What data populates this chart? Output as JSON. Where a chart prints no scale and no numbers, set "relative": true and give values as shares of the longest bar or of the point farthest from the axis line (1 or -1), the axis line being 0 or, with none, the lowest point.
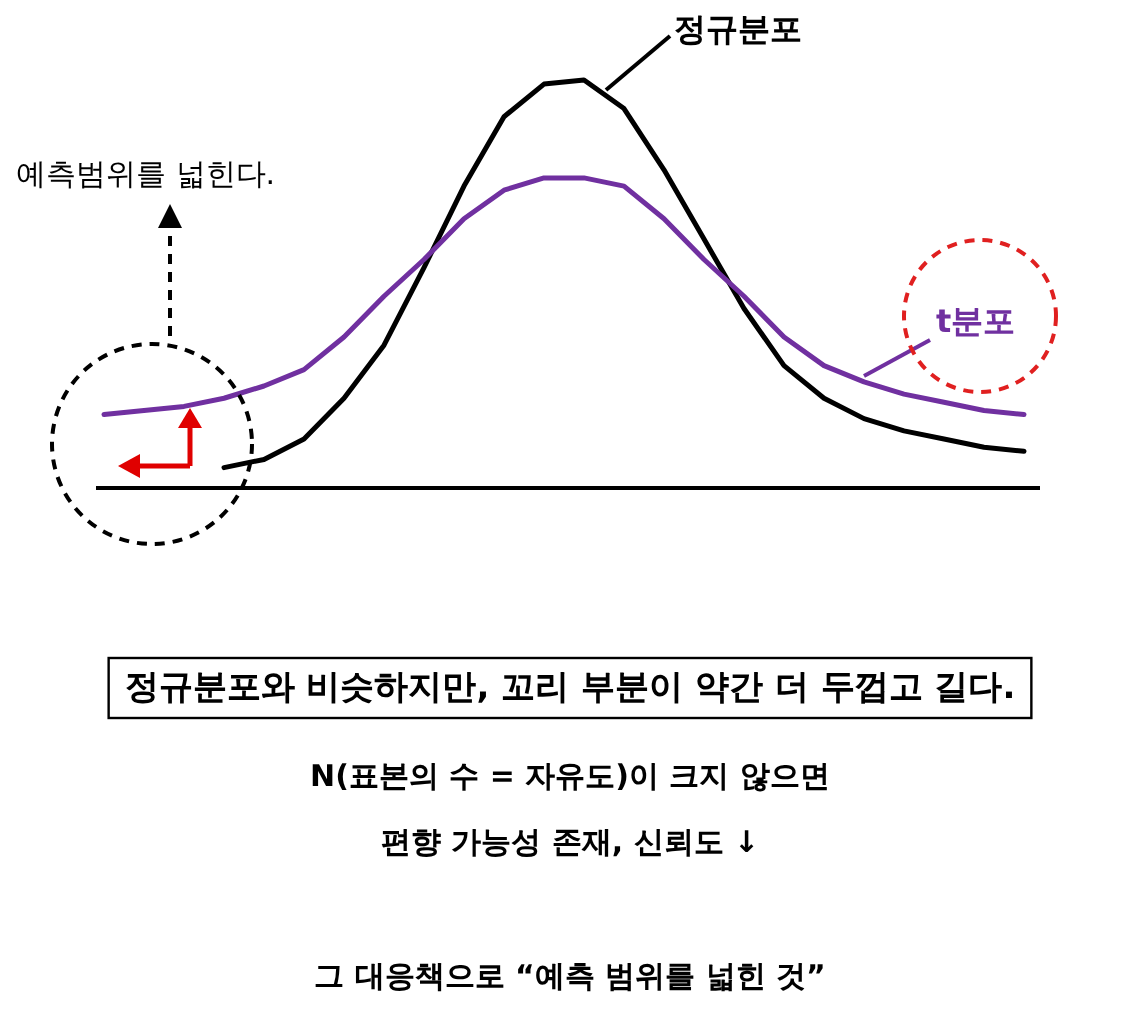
{
  "chart_data": {
    "type": "line",
    "relative": true,
    "categories": [
      null,
      null,
      null,
      null,
      null,
      null,
      null,
      null,
      null,
      null,
      null,
      null,
      null,
      null,
      null,
      null,
      null,
      null,
      null,
      null,
      null,
      null,
      null,
      null
    ],
    "series": [
      {
        "name": "정규분포",
        "color": "#000000",
        "values": [
          null,
          null,
          null,
          0.05,
          0.07,
          0.12,
          0.22,
          0.35,
          0.54,
          0.74,
          0.91,
          0.99,
          1.0,
          0.93,
          0.78,
          0.61,
          0.44,
          0.3,
          0.22,
          0.17,
          0.14,
          0.12,
          0.1,
          0.09
        ]
      },
      {
        "name": "t분포",
        "color": "#7030a0",
        "values": [
          0.18,
          0.19,
          0.2,
          0.22,
          0.25,
          0.29,
          0.37,
          0.47,
          0.56,
          0.66,
          0.73,
          0.76,
          0.76,
          0.74,
          0.66,
          0.56,
          0.47,
          0.37,
          0.3,
          0.26,
          0.23,
          0.21,
          0.19,
          0.18
        ]
      }
    ],
    "annotations": [
      "예측범위를 넓힌다.",
      "정규분포와 비슷하지만, 꼬리 부분이 약간 더 두껍고 길다.",
      "N(표본의 수 = 자유도)이 크지 않으면",
      "편향 가능성 존재, 신뢰도 ↓",
      "그 대응책으로 “예측 범위를 넓힌 것”"
    ]
  }
}
